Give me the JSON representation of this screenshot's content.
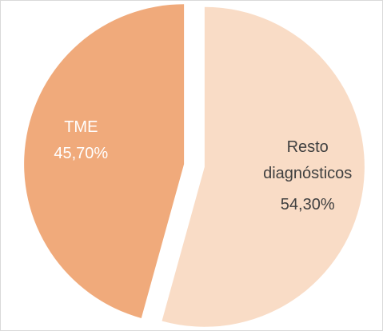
{
  "chart_data": {
    "type": "pie",
    "categories": [
      "Resto diagnósticos",
      "TME"
    ],
    "values": [
      54.3,
      45.7
    ],
    "value_labels": [
      "54,30%",
      "45,70%"
    ],
    "colors": [
      "#f9dcc6",
      "#f0aa7b"
    ]
  }
}
